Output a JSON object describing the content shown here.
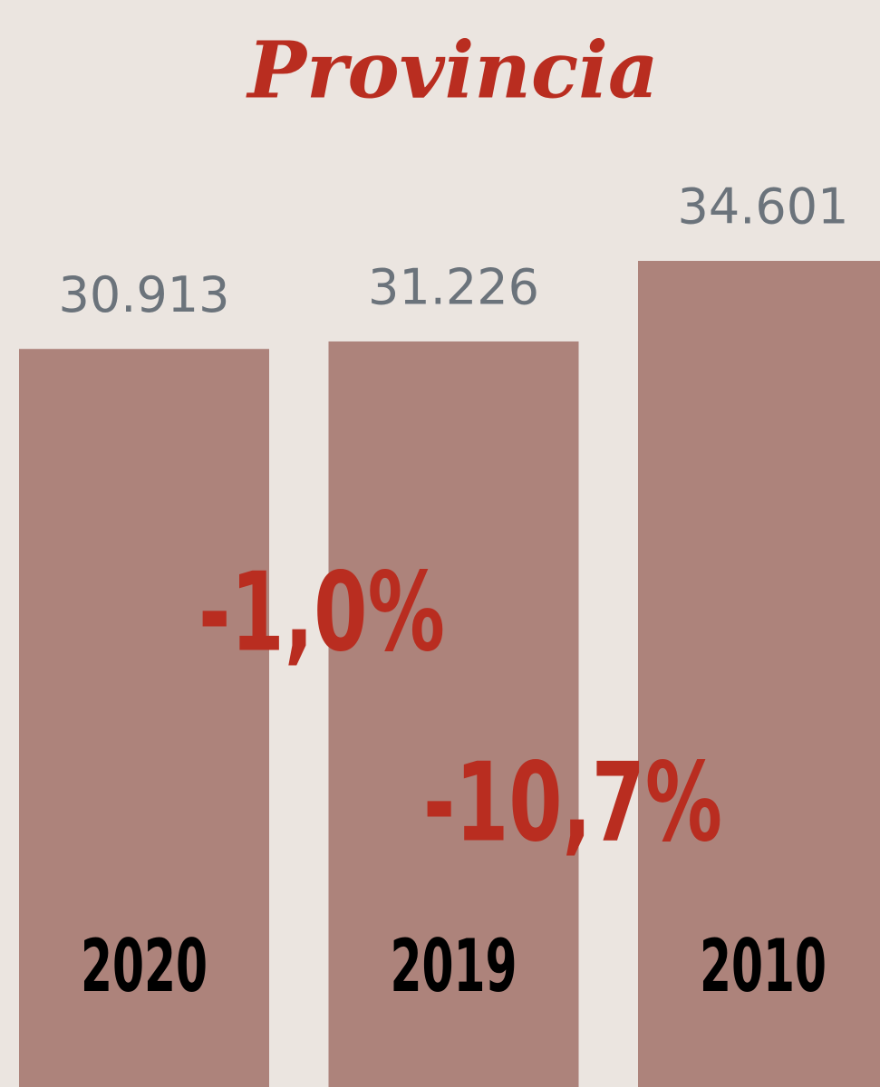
{
  "chart_data": {
    "type": "bar",
    "title": "Provincia",
    "categories": [
      "2020",
      "2019",
      "2010"
    ],
    "values": [
      30913,
      31226,
      34601
    ],
    "value_labels": [
      "30.913",
      "31.226",
      "34.601"
    ],
    "color": "#ad837b",
    "annotations": [
      "-1,0%",
      "-10,7%"
    ]
  }
}
